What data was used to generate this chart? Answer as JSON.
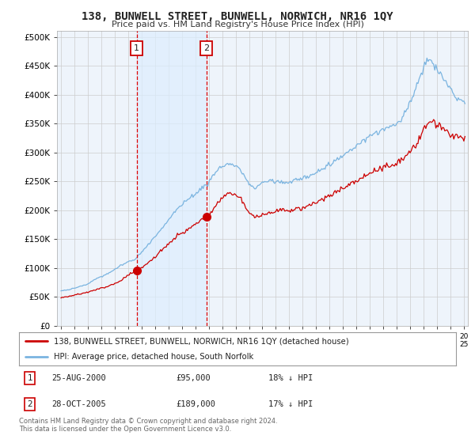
{
  "title": "138, BUNWELL STREET, BUNWELL, NORWICH, NR16 1QY",
  "subtitle": "Price paid vs. HM Land Registry's House Price Index (HPI)",
  "ylabel_ticks": [
    "£0",
    "£50K",
    "£100K",
    "£150K",
    "£200K",
    "£250K",
    "£300K",
    "£350K",
    "£400K",
    "£450K",
    "£500K"
  ],
  "ytick_vals": [
    0,
    50000,
    100000,
    150000,
    200000,
    250000,
    300000,
    350000,
    400000,
    450000,
    500000
  ],
  "ylim": [
    0,
    510000
  ],
  "sale1_t": 2000.6389,
  "sale1_price": 95000,
  "sale2_t": 2005.8194,
  "sale2_price": 189000,
  "hpi_color": "#7ab4e0",
  "price_color": "#cc0000",
  "vline_color": "#dd0000",
  "shade_color": "#ddeeff",
  "grid_color": "#cccccc",
  "bg_color": "#ffffff",
  "plot_bg": "#eef4fb",
  "legend_line1": "138, BUNWELL STREET, BUNWELL, NORWICH, NR16 1QY (detached house)",
  "legend_line2": "HPI: Average price, detached house, South Norfolk",
  "footer": "Contains HM Land Registry data © Crown copyright and database right 2024.\nThis data is licensed under the Open Government Licence v3.0."
}
